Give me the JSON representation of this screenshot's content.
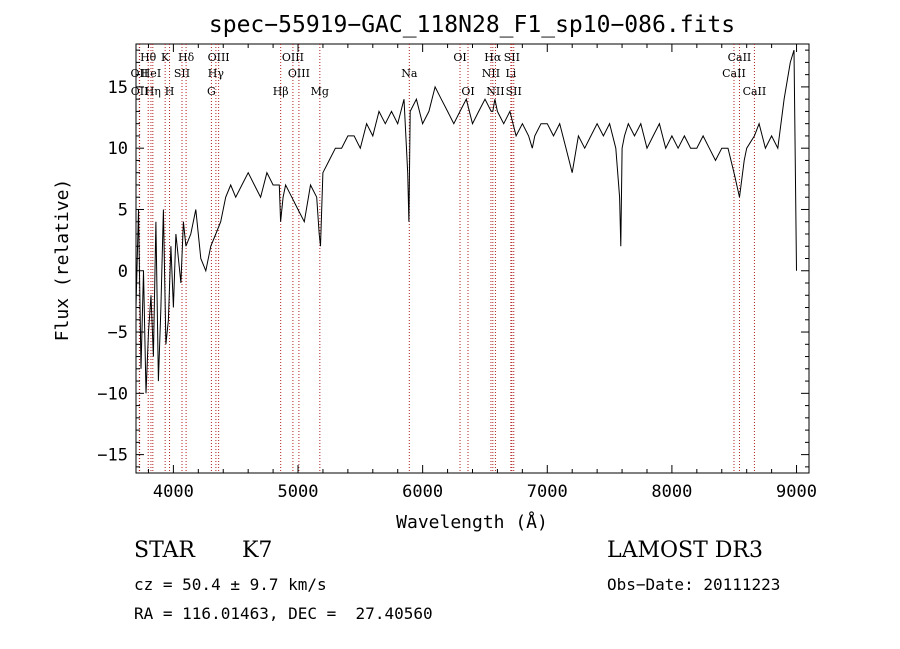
{
  "chart_data": {
    "type": "line",
    "title": "spec−55919−GAC_118N28_F1_sp10−086.fits",
    "xlabel": "Wavelength (Å)",
    "ylabel": "Flux (relative)",
    "xlim": [
      3700,
      9100
    ],
    "ylim": [
      -16.5,
      18.5
    ],
    "xticks": [
      4000,
      5000,
      6000,
      7000,
      8000,
      9000
    ],
    "xtick_labels": [
      "4000",
      "5000",
      "6000",
      "7000",
      "8000",
      "9000"
    ],
    "yticks": [
      -15,
      -10,
      -5,
      0,
      5,
      10,
      15
    ],
    "ytick_labels": [
      "−15",
      "−10",
      "−5",
      "0",
      "5",
      "10",
      "15"
    ],
    "grid": false,
    "series": [
      {
        "name": "spectrum",
        "color": "#000000",
        "x": [
          3700,
          3720,
          3740,
          3760,
          3780,
          3800,
          3820,
          3840,
          3860,
          3880,
          3900,
          3920,
          3940,
          3960,
          3980,
          4000,
          4020,
          4040,
          4060,
          4080,
          4100,
          4140,
          4180,
          4220,
          4260,
          4300,
          4340,
          4380,
          4420,
          4460,
          4500,
          4550,
          4600,
          4650,
          4700,
          4750,
          4800,
          4850,
          4860,
          4880,
          4900,
          4950,
          5000,
          5050,
          5100,
          5150,
          5170,
          5180,
          5200,
          5250,
          5300,
          5350,
          5400,
          5450,
          5500,
          5550,
          5600,
          5650,
          5700,
          5750,
          5800,
          5850,
          5880,
          5890,
          5900,
          5950,
          6000,
          6050,
          6100,
          6150,
          6200,
          6250,
          6300,
          6350,
          6400,
          6450,
          6500,
          6550,
          6563,
          6580,
          6600,
          6650,
          6700,
          6750,
          6800,
          6850,
          6880,
          6900,
          6950,
          7000,
          7050,
          7100,
          7150,
          7200,
          7250,
          7300,
          7350,
          7400,
          7450,
          7500,
          7550,
          7580,
          7590,
          7600,
          7620,
          7650,
          7700,
          7750,
          7800,
          7850,
          7900,
          7950,
          8000,
          8050,
          8100,
          8150,
          8200,
          8250,
          8300,
          8350,
          8400,
          8450,
          8498,
          8542,
          8580,
          8600,
          8662,
          8700,
          8750,
          8800,
          8850,
          8900,
          8950,
          8980,
          9000
        ],
        "y": [
          -3,
          5,
          -8,
          0,
          -10,
          -5,
          -2,
          -7,
          4,
          -9,
          -3,
          5,
          -6,
          -4,
          2,
          -3,
          3,
          1,
          -1,
          4,
          2,
          3,
          5,
          1,
          0,
          2,
          3,
          4,
          6,
          7,
          6,
          7,
          8,
          7,
          6,
          8,
          7,
          7,
          4,
          6,
          7,
          6,
          5,
          4,
          7,
          6,
          3,
          2,
          8,
          9,
          10,
          10,
          11,
          11,
          10,
          12,
          11,
          13,
          12,
          13,
          12,
          14,
          8,
          4,
          13,
          14,
          12,
          13,
          15,
          14,
          13,
          12,
          13,
          14,
          12,
          13,
          14,
          13,
          13,
          14,
          13,
          12,
          13,
          11,
          12,
          11,
          10,
          11,
          12,
          12,
          11,
          12,
          10,
          8,
          11,
          10,
          11,
          12,
          11,
          12,
          10,
          6,
          2,
          10,
          11,
          12,
          11,
          12,
          10,
          11,
          12,
          10,
          11,
          10,
          11,
          10,
          10,
          11,
          10,
          9,
          10,
          10,
          8,
          6,
          9,
          10,
          11,
          12,
          10,
          11,
          10,
          14,
          17,
          18,
          0
        ]
      }
    ],
    "line_markers": [
      {
        "name": "O II",
        "label": "OII",
        "x": 3727,
        "row": 2
      },
      {
        "name": "O II (b)",
        "label": "OII",
        "x": 3729,
        "row": 3
      },
      {
        "name": "H theta",
        "label": "Hθ",
        "x": 3798,
        "row": 1
      },
      {
        "name": "He I",
        "label": "HeI",
        "x": 3820,
        "row": 2
      },
      {
        "name": "H eta",
        "label": "Hη",
        "x": 3835,
        "row": 3
      },
      {
        "name": "K",
        "label": "K",
        "x": 3934,
        "row": 1
      },
      {
        "name": "S II",
        "label": "SII",
        "x": 4069,
        "row": 2
      },
      {
        "name": "H",
        "label": "H",
        "x": 3969,
        "row": 3
      },
      {
        "name": "H delta",
        "label": "Hδ",
        "x": 4102,
        "row": 1
      },
      {
        "name": "O III",
        "label": "OIII",
        "x": 4363,
        "row": 1
      },
      {
        "name": "H gamma",
        "label": "Hγ",
        "x": 4341,
        "row": 2
      },
      {
        "name": "G",
        "label": "G",
        "x": 4305,
        "row": 3
      },
      {
        "name": "O III (b)",
        "label": "OIII",
        "x": 4959,
        "row": 1
      },
      {
        "name": "O III (c)",
        "label": "OIII",
        "x": 5007,
        "row": 2
      },
      {
        "name": "H beta",
        "label": "Hβ",
        "x": 4861,
        "row": 3
      },
      {
        "name": "Mg",
        "label": "Mg",
        "x": 5175,
        "row": 3
      },
      {
        "name": "Na",
        "label": "Na",
        "x": 5893,
        "row": 2
      },
      {
        "name": "O I",
        "label": "OI",
        "x": 6300,
        "row": 1
      },
      {
        "name": "O I (b)",
        "label": "OI",
        "x": 6364,
        "row": 3
      },
      {
        "name": "H alpha",
        "label": "Hα",
        "x": 6563,
        "row": 1
      },
      {
        "name": "S II (b)",
        "label": "SII",
        "x": 6716,
        "row": 1
      },
      {
        "name": "N II",
        "label": "NII",
        "x": 6548,
        "row": 2
      },
      {
        "name": "Li",
        "label": "Li",
        "x": 6708,
        "row": 2
      },
      {
        "name": "N II (b)",
        "label": "NII",
        "x": 6584,
        "row": 3
      },
      {
        "name": "S II (c)",
        "label": "SII",
        "x": 6731,
        "row": 3
      },
      {
        "name": "Ca II",
        "label": "CaII",
        "x": 8542,
        "row": 1
      },
      {
        "name": "Ca II (b)",
        "label": "CaII",
        "x": 8498,
        "row": 2
      },
      {
        "name": "Ca II (c)",
        "label": "CaII",
        "x": 8662,
        "row": 3
      }
    ]
  },
  "info": {
    "object_class": "STAR",
    "subclass": "K7",
    "survey": "LAMOST DR3",
    "cz": "cz = 50.4 ± 9.7 km/s",
    "obs_date": "Obs−Date: 20111223",
    "radec": "RA = 116.01463, DEC =  27.40560"
  }
}
